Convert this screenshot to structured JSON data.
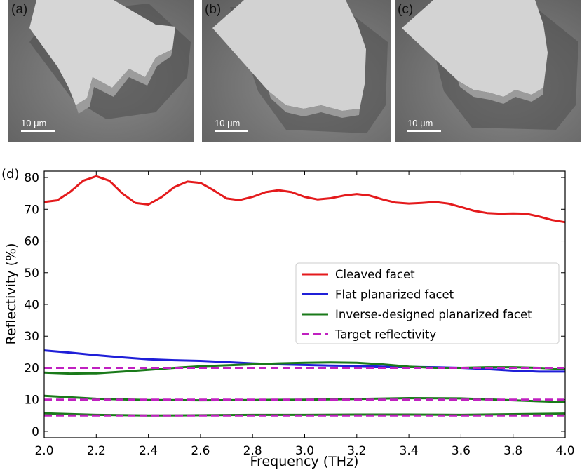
{
  "figure": {
    "panels": [
      {
        "label": "(a)",
        "scale_bar": "10 μm"
      },
      {
        "label": "(b)",
        "scale_bar": "10 μm"
      },
      {
        "label": "(c)",
        "scale_bar": "10 μm"
      }
    ],
    "chart_label": "(d)"
  },
  "colors": {
    "cleaved": "#e41a1c",
    "flat": "#1f1fd8",
    "inverse": "#1a7a1a",
    "target": "#c020c0"
  },
  "chart_data": {
    "type": "line",
    "title": "",
    "xlabel": "Frequency (THz)",
    "ylabel": "Reflectivity (%)",
    "xlim": [
      2.0,
      4.0
    ],
    "ylim": [
      -2,
      82
    ],
    "xticks": [
      "2.0",
      "2.2",
      "2.4",
      "2.6",
      "2.8",
      "3.0",
      "3.2",
      "3.4",
      "3.6",
      "3.8",
      "4.0"
    ],
    "yticks": [
      "0",
      "10",
      "20",
      "30",
      "40",
      "50",
      "60",
      "70",
      "80"
    ],
    "legend": [
      "Cleaved facet",
      "Flat planarized facet",
      "Inverse-designed planarized facet",
      "Target reflectivity"
    ],
    "legend_position": "center-right",
    "series": [
      {
        "name": "Cleaved facet",
        "style": "solid",
        "color": "#e41a1c",
        "x": [
          2.0,
          2.05,
          2.1,
          2.15,
          2.2,
          2.25,
          2.3,
          2.35,
          2.4,
          2.45,
          2.5,
          2.55,
          2.6,
          2.65,
          2.7,
          2.75,
          2.8,
          2.85,
          2.9,
          2.95,
          3.0,
          3.05,
          3.1,
          3.15,
          3.2,
          3.25,
          3.3,
          3.35,
          3.4,
          3.45,
          3.5,
          3.55,
          3.6,
          3.65,
          3.7,
          3.75,
          3.8,
          3.85,
          3.9,
          3.95,
          4.0
        ],
        "y": [
          72.3,
          72.8,
          75.5,
          79.0,
          80.4,
          79.0,
          75.0,
          72.0,
          71.5,
          73.8,
          77.0,
          78.7,
          78.3,
          76.0,
          73.4,
          72.9,
          73.9,
          75.4,
          76.0,
          75.4,
          73.9,
          73.1,
          73.5,
          74.3,
          74.8,
          74.3,
          73.1,
          72.1,
          71.8,
          72.0,
          72.3,
          71.8,
          70.7,
          69.5,
          68.8,
          68.6,
          68.7,
          68.6,
          67.7,
          66.6,
          65.9
        ]
      },
      {
        "name": "Flat planarized facet",
        "style": "solid",
        "color": "#1f1fd8",
        "x": [
          2.0,
          2.1,
          2.2,
          2.3,
          2.4,
          2.5,
          2.6,
          2.7,
          2.8,
          2.9,
          3.0,
          3.1,
          3.2,
          3.3,
          3.4,
          3.5,
          3.6,
          3.7,
          3.8,
          3.9,
          4.0
        ],
        "y": [
          25.5,
          24.8,
          24.0,
          23.3,
          22.7,
          22.4,
          22.2,
          21.8,
          21.4,
          21.1,
          20.9,
          20.7,
          20.6,
          20.4,
          20.3,
          20.2,
          20.0,
          19.6,
          19.1,
          18.8,
          18.8
        ]
      },
      {
        "name": "Inverse-designed planarized facet",
        "style": "solid",
        "color": "#1a7a1a",
        "x": [
          2.0,
          2.1,
          2.2,
          2.3,
          2.4,
          2.5,
          2.6,
          2.7,
          2.8,
          2.9,
          3.0,
          3.1,
          3.2,
          3.3,
          3.4,
          3.5,
          3.6,
          3.7,
          3.8,
          3.9,
          4.0
        ],
        "y": [
          18.5,
          18.2,
          18.3,
          18.8,
          19.4,
          20.0,
          20.5,
          20.8,
          21.1,
          21.4,
          21.6,
          21.7,
          21.6,
          21.1,
          20.4,
          20.0,
          20.0,
          20.2,
          20.2,
          20.0,
          19.6
        ]
      },
      {
        "name": "Inverse-designed planarized facet (10%)",
        "style": "solid",
        "color": "#1a7a1a",
        "x": [
          2.0,
          2.2,
          2.4,
          2.6,
          2.8,
          3.0,
          3.2,
          3.4,
          3.6,
          3.8,
          4.0
        ],
        "y": [
          11.2,
          10.3,
          9.9,
          9.8,
          9.9,
          10.0,
          10.2,
          10.5,
          10.4,
          9.8,
          9.2
        ]
      },
      {
        "name": "Inverse-designed planarized facet (5%)",
        "style": "solid",
        "color": "#1a7a1a",
        "x": [
          2.0,
          2.2,
          2.4,
          2.6,
          2.8,
          3.0,
          3.2,
          3.4,
          3.6,
          3.8,
          4.0
        ],
        "y": [
          5.7,
          5.2,
          5.0,
          5.1,
          5.2,
          5.2,
          5.3,
          5.3,
          5.2,
          5.4,
          5.6
        ]
      },
      {
        "name": "Target reflectivity",
        "style": "dashed",
        "color": "#c020c0",
        "x": [
          2.0,
          4.0
        ],
        "y": [
          20.0,
          20.0
        ]
      },
      {
        "name": "Target reflectivity (10%)",
        "style": "dashed",
        "color": "#c020c0",
        "x": [
          2.0,
          4.0
        ],
        "y": [
          10.0,
          10.0
        ]
      },
      {
        "name": "Target reflectivity (5%)",
        "style": "dashed",
        "color": "#c020c0",
        "x": [
          2.0,
          4.0
        ],
        "y": [
          5.0,
          5.0
        ]
      }
    ]
  }
}
